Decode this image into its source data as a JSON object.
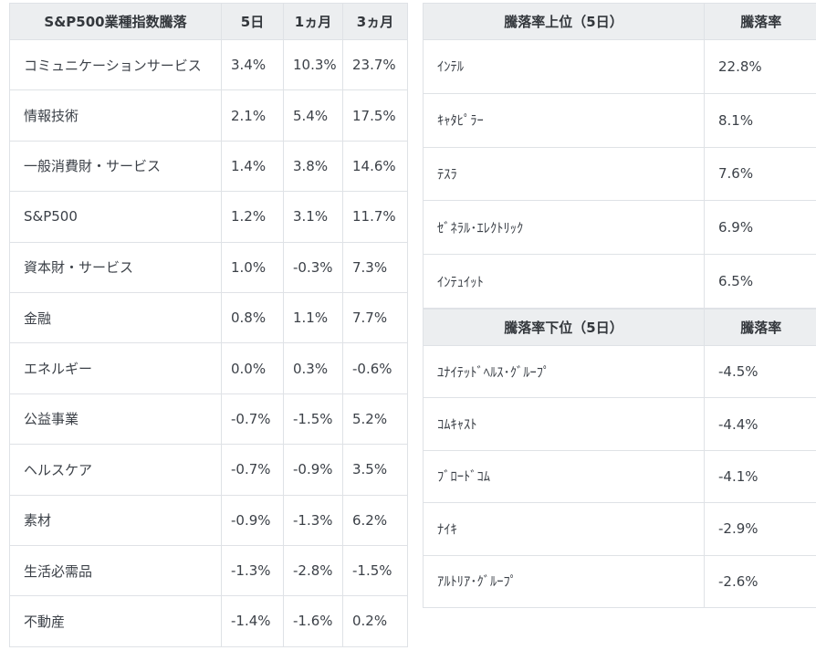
{
  "colors": {
    "header_bg": "#eceef0",
    "border": "#dfe2e6",
    "header_text": "#33373c",
    "body_text": "#3c4148",
    "page_bg": "#ffffff"
  },
  "sector_table": {
    "title": "S&P500業種指数騰落",
    "columns": [
      "5日",
      "1ヵ月",
      "3ヵ月"
    ],
    "rows": [
      [
        "コミュニケーションサービス",
        "3.4%",
        "10.3%",
        "23.7%"
      ],
      [
        "情報技術",
        "2.1%",
        "5.4%",
        "17.5%"
      ],
      [
        "一般消費財・サービス",
        "1.4%",
        "3.8%",
        "14.6%"
      ],
      [
        "S&P500",
        "1.2%",
        "3.1%",
        "11.7%"
      ],
      [
        "資本財・サービス",
        "1.0%",
        "-0.3%",
        "7.3%"
      ],
      [
        "金融",
        "0.8%",
        "1.1%",
        "7.7%"
      ],
      [
        "エネルギー",
        "0.0%",
        "0.3%",
        "-0.6%"
      ],
      [
        "公益事業",
        "-0.7%",
        "-1.5%",
        "5.2%"
      ],
      [
        "ヘルスケア",
        "-0.7%",
        "-0.9%",
        "3.5%"
      ],
      [
        "素材",
        "-0.9%",
        "-1.3%",
        "6.2%"
      ],
      [
        "生活必需品",
        "-1.3%",
        "-2.8%",
        "-1.5%"
      ],
      [
        "不動産",
        "-1.4%",
        "-1.6%",
        "0.2%"
      ]
    ]
  },
  "gainers_table": {
    "title": "騰落率上位（5日）",
    "value_header": "騰落率",
    "rows": [
      [
        "ｲﾝﾃﾙ",
        "22.8%"
      ],
      [
        "ｷｬﾀﾋﾟﾗｰ",
        "8.1%"
      ],
      [
        "ﾃｽﾗ",
        "7.6%"
      ],
      [
        "ｾﾞﾈﾗﾙ･ｴﾚｸﾄﾘｯｸ",
        "6.9%"
      ],
      [
        "ｲﾝﾃｭｲｯﾄ",
        "6.5%"
      ]
    ]
  },
  "losers_table": {
    "title": "騰落率下位（5日）",
    "value_header": "騰落率",
    "rows": [
      [
        "ﾕﾅｲﾃｯﾄﾞﾍﾙｽ･ｸﾞﾙｰﾌﾟ",
        "-4.5%"
      ],
      [
        "ｺﾑｷｬｽﾄ",
        "-4.4%"
      ],
      [
        "ﾌﾞﾛｰﾄﾞｺﾑ",
        "-4.1%"
      ],
      [
        "ﾅｲｷ",
        "-2.9%"
      ],
      [
        "ｱﾙﾄﾘｱ･ｸﾞﾙｰﾌﾟ",
        "-2.6%"
      ]
    ]
  }
}
